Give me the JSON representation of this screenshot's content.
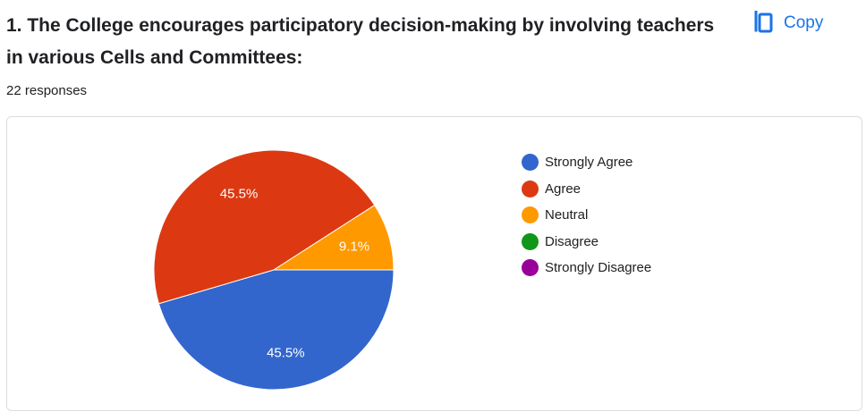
{
  "question": {
    "title": "1.  The College encourages participatory decision-making by involving teachers in various Cells and Committees:",
    "responses_text": "22 responses"
  },
  "toolbar": {
    "copy_label": "Copy",
    "copy_icon": "copy-icon",
    "accent_color": "#1a73e8"
  },
  "chart_data": {
    "type": "pie",
    "start_angle_deg": 90,
    "direction": "clockwise",
    "legend_position": "right",
    "slices": [
      {
        "label": "Strongly Agree",
        "value": 45.5,
        "display": "45.5%",
        "color": "#3366cc"
      },
      {
        "label": "Agree",
        "value": 45.5,
        "display": "45.5%",
        "color": "#dc3912"
      },
      {
        "label": "Neutral",
        "value": 9.1,
        "display": "9.1%",
        "color": "#ff9900"
      },
      {
        "label": "Disagree",
        "value": 0,
        "display": "",
        "color": "#109618"
      },
      {
        "label": "Strongly Disagree",
        "value": 0,
        "display": "",
        "color": "#990099"
      }
    ]
  }
}
